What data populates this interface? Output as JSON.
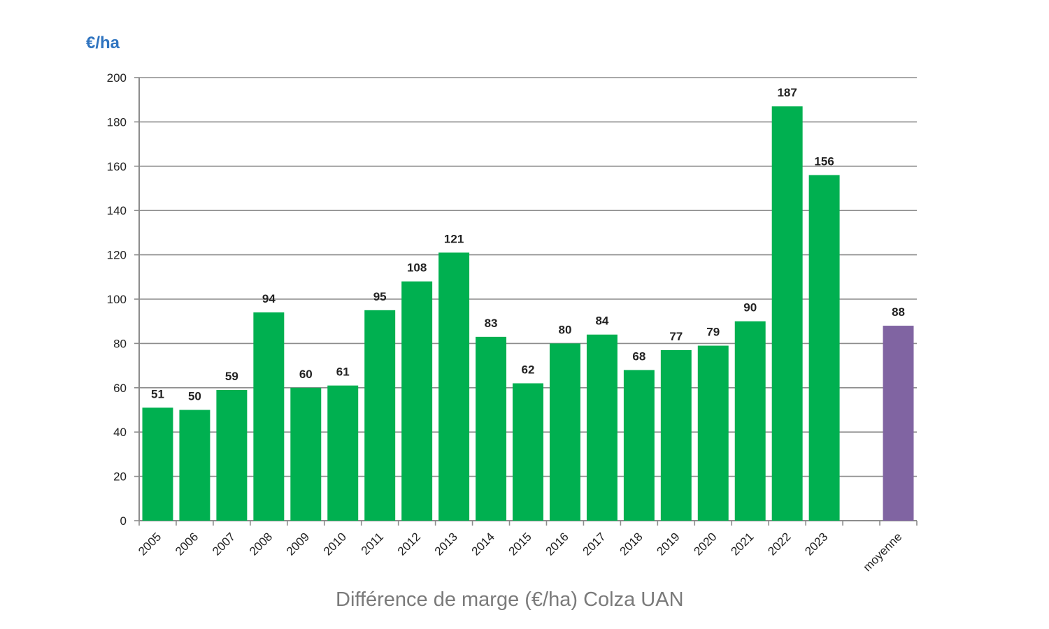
{
  "chart_data": {
    "type": "bar",
    "ylabel": "€/ha",
    "xlabel": "",
    "title": "Différence de marge (€/ha) Colza  UAN",
    "ylim": [
      0,
      200
    ],
    "yticks": [
      0,
      20,
      40,
      60,
      80,
      100,
      120,
      140,
      160,
      180,
      200
    ],
    "grid": true,
    "categories": [
      "2005",
      "2006",
      "2007",
      "2008",
      "2009",
      "2010",
      "2011",
      "2012",
      "2013",
      "2014",
      "2015",
      "2016",
      "2017",
      "2018",
      "2019",
      "2020",
      "2021",
      "2022",
      "2023",
      "",
      "moyenne"
    ],
    "values": [
      51,
      50,
      59,
      94,
      60,
      61,
      95,
      108,
      121,
      83,
      62,
      80,
      84,
      68,
      77,
      79,
      90,
      187,
      156,
      null,
      88
    ],
    "bar_colors": {
      "year": "#00b050",
      "average": "#8064a2"
    }
  }
}
